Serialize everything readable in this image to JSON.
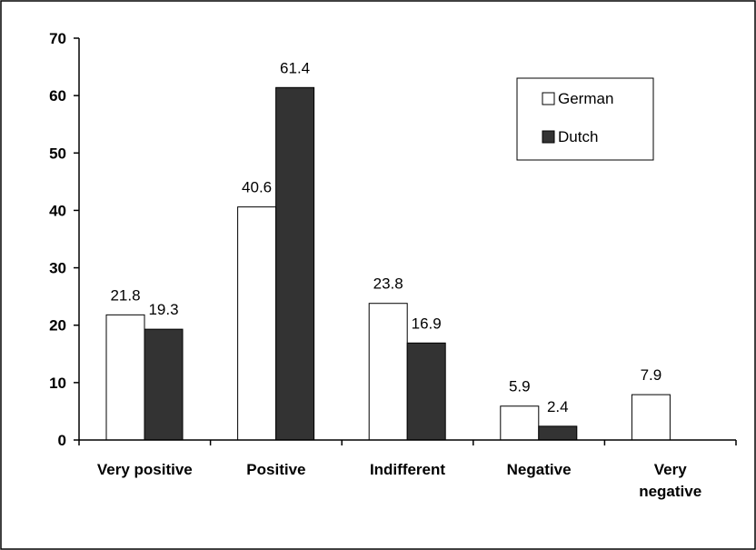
{
  "chart_data": {
    "type": "bar",
    "categories": [
      [
        "Very positive"
      ],
      [
        "Positive"
      ],
      [
        "Indifferent"
      ],
      [
        "Negative"
      ],
      [
        "Very",
        "negative"
      ]
    ],
    "series": [
      {
        "name": "German",
        "values": [
          21.8,
          40.6,
          23.8,
          5.9,
          7.9
        ],
        "color": "#ffffff"
      },
      {
        "name": "Dutch",
        "values": [
          19.3,
          61.4,
          16.9,
          2.4,
          null
        ],
        "color": "#333333"
      }
    ],
    "data_labels": [
      [
        "21.8",
        "40.6",
        "23.8",
        "5.9",
        "7.9"
      ],
      [
        "19.3",
        "61.4",
        "16.9",
        "2.4",
        ""
      ]
    ],
    "yticks": [
      0,
      10,
      20,
      30,
      40,
      50,
      60,
      70
    ],
    "ylim": [
      0,
      70
    ],
    "grid": false,
    "legend": "top-right"
  }
}
